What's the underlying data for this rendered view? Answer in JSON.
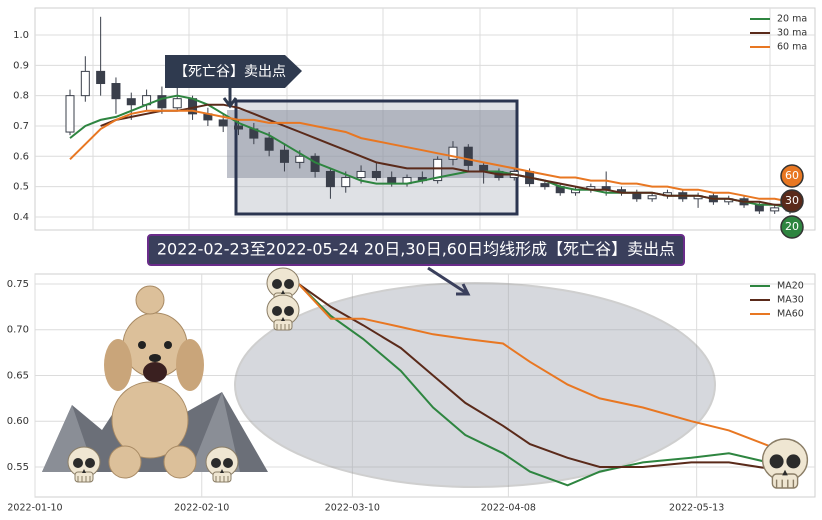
{
  "chart_data": [
    {
      "type": "candlestick",
      "open": [
        0.68,
        0.8,
        0.88,
        0.84,
        0.79,
        0.77,
        0.8,
        0.76,
        0.79,
        0.74,
        0.72,
        0.7,
        0.69,
        0.66,
        0.62,
        0.58,
        0.6,
        0.55,
        0.5,
        0.53,
        0.55,
        0.53,
        0.51,
        0.53,
        0.52,
        0.59,
        0.63,
        0.57,
        0.55,
        0.53,
        0.55,
        0.51,
        0.5,
        0.48,
        0.49,
        0.5,
        0.49,
        0.48,
        0.46,
        0.47,
        0.48,
        0.46,
        0.47,
        0.45,
        0.46,
        0.44,
        0.42,
        0.43
      ],
      "high": [
        0.82,
        0.93,
        1.06,
        0.86,
        0.81,
        0.82,
        0.83,
        0.84,
        0.8,
        0.76,
        0.74,
        0.72,
        0.71,
        0.68,
        0.64,
        0.62,
        0.61,
        0.56,
        0.55,
        0.57,
        0.58,
        0.55,
        0.54,
        0.55,
        0.6,
        0.65,
        0.64,
        0.58,
        0.56,
        0.56,
        0.56,
        0.52,
        0.51,
        0.5,
        0.51,
        0.55,
        0.5,
        0.49,
        0.48,
        0.49,
        0.49,
        0.48,
        0.48,
        0.47,
        0.47,
        0.45,
        0.44,
        0.44
      ],
      "low": [
        0.67,
        0.78,
        0.8,
        0.74,
        0.72,
        0.75,
        0.74,
        0.75,
        0.72,
        0.7,
        0.68,
        0.67,
        0.64,
        0.6,
        0.55,
        0.56,
        0.53,
        0.46,
        0.48,
        0.51,
        0.52,
        0.5,
        0.5,
        0.51,
        0.51,
        0.57,
        0.55,
        0.51,
        0.52,
        0.52,
        0.5,
        0.49,
        0.47,
        0.47,
        0.48,
        0.47,
        0.47,
        0.45,
        0.45,
        0.46,
        0.45,
        0.43,
        0.44,
        0.44,
        0.43,
        0.41,
        0.41,
        0.41
      ],
      "close": [
        0.8,
        0.88,
        0.84,
        0.79,
        0.77,
        0.8,
        0.76,
        0.79,
        0.74,
        0.72,
        0.7,
        0.69,
        0.66,
        0.62,
        0.58,
        0.6,
        0.55,
        0.5,
        0.53,
        0.55,
        0.53,
        0.51,
        0.53,
        0.52,
        0.59,
        0.63,
        0.57,
        0.55,
        0.53,
        0.55,
        0.51,
        0.5,
        0.48,
        0.49,
        0.5,
        0.49,
        0.48,
        0.46,
        0.47,
        0.48,
        0.46,
        0.47,
        0.45,
        0.46,
        0.44,
        0.42,
        0.43,
        0.42
      ],
      "up_color": "#ffffff",
      "down_color": "#3a3f4a",
      "series": [
        {
          "name": "20 ma",
          "badge": "20",
          "color": "#2e8540",
          "values": [
            0.66,
            0.7,
            0.72,
            0.73,
            0.75,
            0.77,
            0.79,
            0.8,
            0.79,
            0.77,
            0.74,
            0.71,
            0.69,
            0.67,
            0.64,
            0.61,
            0.58,
            0.56,
            0.54,
            0.52,
            0.51,
            0.51,
            0.51,
            0.52,
            0.53,
            0.54,
            0.55,
            0.55,
            0.55,
            0.54,
            0.53,
            0.52,
            0.5,
            0.49,
            0.49,
            0.48,
            0.48,
            0.48,
            0.48,
            0.47,
            0.47,
            0.47,
            0.46,
            0.46,
            0.45,
            0.44,
            0.44,
            0.43
          ]
        },
        {
          "name": "30 ma",
          "badge": "30",
          "color": "#5a2a1a",
          "values": [
            null,
            null,
            0.7,
            0.72,
            0.73,
            0.74,
            0.75,
            0.75,
            0.76,
            0.77,
            0.77,
            0.76,
            0.74,
            0.72,
            0.7,
            0.68,
            0.66,
            0.64,
            0.62,
            0.6,
            0.58,
            0.57,
            0.56,
            0.56,
            0.56,
            0.56,
            0.55,
            0.55,
            0.54,
            0.54,
            0.53,
            0.52,
            0.51,
            0.5,
            0.49,
            0.49,
            0.48,
            0.48,
            0.48,
            0.47,
            0.47,
            0.47,
            0.46,
            0.46,
            0.45,
            0.45,
            0.44,
            0.44
          ]
        },
        {
          "name": "60 ma",
          "badge": "60",
          "color": "#e87722",
          "values": [
            0.59,
            0.64,
            0.69,
            0.72,
            0.74,
            0.75,
            0.75,
            0.75,
            0.75,
            0.74,
            0.73,
            0.72,
            0.72,
            0.71,
            0.71,
            0.71,
            0.7,
            0.69,
            0.68,
            0.66,
            0.65,
            0.64,
            0.63,
            0.62,
            0.61,
            0.6,
            0.59,
            0.58,
            0.57,
            0.56,
            0.55,
            0.54,
            0.53,
            0.53,
            0.52,
            0.52,
            0.51,
            0.51,
            0.5,
            0.5,
            0.49,
            0.49,
            0.48,
            0.48,
            0.47,
            0.46,
            0.46,
            0.45
          ]
        }
      ],
      "ylim": [
        0.357,
        1.089
      ],
      "yticks": [
        0.4,
        0.5,
        0.6,
        0.7,
        0.8,
        0.9,
        {
          "value": 1,
          "label": "1.0"
        }
      ],
      "grid": true,
      "legend": "upper right",
      "annotations": [
        "【死亡谷】卖出点",
        "2022-02-23至2022-05-24 20日,30日,60日均线形成【死亡谷】卖出点"
      ]
    },
    {
      "type": "line",
      "x": [
        "2022-02-28",
        "2022-03-06",
        "2022-03-12",
        "2022-03-19",
        "2022-03-25",
        "2022-03-31",
        "2022-04-07",
        "2022-04-12",
        "2022-04-19",
        "2022-04-25",
        "2022-05-03",
        "2022-05-12",
        "2022-05-19",
        "2022-05-30"
      ],
      "series": [
        {
          "name": "MA20",
          "color": "#2e8540",
          "values": [
            0.75,
            0.715,
            0.69,
            0.655,
            0.615,
            0.585,
            0.565,
            0.545,
            0.53,
            0.545,
            0.555,
            0.56,
            0.565,
            0.55
          ]
        },
        {
          "name": "MA30",
          "color": "#5a2a1a",
          "values": [
            0.75,
            0.725,
            0.705,
            0.68,
            0.65,
            0.62,
            0.595,
            0.575,
            0.56,
            0.55,
            0.55,
            0.555,
            0.555,
            0.545
          ]
        },
        {
          "name": "MA60",
          "color": "#e87722",
          "values": [
            0.75,
            0.712,
            0.712,
            0.703,
            0.695,
            0.69,
            0.685,
            0.665,
            0.64,
            0.625,
            0.615,
            0.6,
            0.59,
            0.565
          ]
        }
      ],
      "xlim": [
        "2022-01-10",
        "2022-06-04"
      ],
      "xticks": [
        "2022-01-10",
        "2022-02-10",
        "2022-03-10",
        "2022-04-08",
        "2022-05-13"
      ],
      "ylim": [
        0.5172,
        0.7609
      ],
      "yticks": [
        0.55,
        {
          "value": 0.6,
          "label": "0.60"
        },
        0.65,
        {
          "value": 0.7,
          "label": "0.70"
        },
        0.75
      ],
      "grid": true,
      "legend": "upper right"
    }
  ]
}
